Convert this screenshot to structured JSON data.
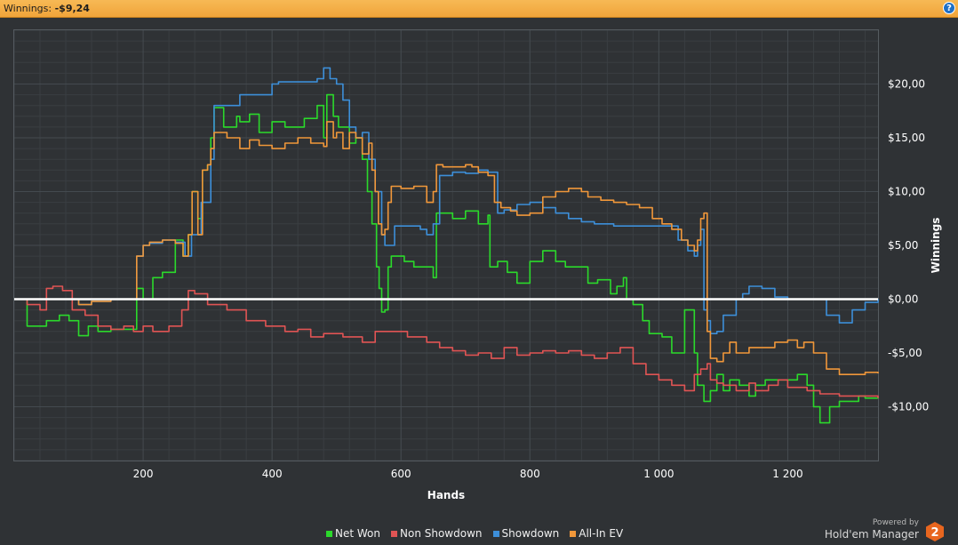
{
  "header": {
    "label": "Winnings:",
    "value": "-$9,24",
    "help_icon": "?"
  },
  "footer": {
    "powered_by": "Powered by",
    "brand": "Hold'em Manager",
    "logo_number": "2"
  },
  "colors": {
    "net_won": "#2bd92b",
    "non_showdown": "#e05454",
    "showdown": "#3d8fd9",
    "all_in_ev": "#f0973a",
    "zero_line": "#ffffff",
    "header_bg": "#f5b24c",
    "chart_bg": "#2f3235",
    "grid": "#444a4f"
  },
  "chart_data": {
    "type": "line",
    "xlabel": "Hands",
    "ylabel": "Winnings",
    "xlim": [
      0,
      1340
    ],
    "ylim": [
      -15,
      25
    ],
    "xticks": [
      200,
      400,
      600,
      800,
      1000,
      1200
    ],
    "xtick_labels": [
      "200",
      "400",
      "600",
      "800",
      "1 000",
      "1 200"
    ],
    "yticks": [
      -10,
      -5,
      0,
      5,
      10,
      15,
      20
    ],
    "ytick_labels": [
      "-$10,00",
      "-$5,00",
      "$0,00",
      "$5,00",
      "$10,00",
      "$15,00",
      "$20,00"
    ],
    "grid": true,
    "legend_position": "bottom",
    "series": [
      {
        "name": "Net Won",
        "color": "#2bd92b",
        "x": [
          0,
          20,
          50,
          70,
          85,
          100,
          115,
          130,
          150,
          185,
          190,
          200,
          215,
          230,
          250,
          262,
          270,
          276,
          285,
          292,
          300,
          305,
          310,
          325,
          345,
          350,
          365,
          380,
          400,
          420,
          450,
          470,
          480,
          485,
          495,
          503,
          520,
          530,
          540,
          548,
          555,
          562,
          566,
          570,
          575,
          580,
          585,
          605,
          620,
          650,
          655,
          680,
          700,
          720,
          735,
          738,
          750,
          765,
          780,
          800,
          820,
          840,
          855,
          870,
          890,
          905,
          925,
          935,
          945,
          950,
          960,
          975,
          985,
          1005,
          1020,
          1040,
          1055,
          1060,
          1070,
          1080,
          1090,
          1100,
          1110,
          1125,
          1140,
          1150,
          1165,
          1185,
          1200,
          1215,
          1230,
          1240,
          1250,
          1265,
          1280,
          1300,
          1310,
          1320,
          1340
        ],
        "y": [
          0,
          -2.5,
          -2,
          -1.5,
          -2,
          -3.4,
          -2.5,
          -3,
          -2.8,
          -2.8,
          1,
          0,
          2,
          2.5,
          5.5,
          4,
          6,
          10,
          7.5,
          12,
          12.5,
          15,
          17.8,
          16,
          17,
          16.5,
          17.2,
          15.5,
          16.5,
          16,
          16.8,
          18,
          15,
          19,
          17,
          16,
          14.5,
          15,
          13,
          10,
          7,
          3,
          1,
          -1.2,
          -1,
          3,
          4,
          3.5,
          3,
          2,
          8,
          7.5,
          8.2,
          7,
          7.8,
          3,
          3.5,
          2.5,
          1.5,
          3.5,
          4.5,
          3.5,
          3,
          3,
          1.5,
          1.8,
          0.5,
          1.2,
          2,
          0,
          -0.5,
          -2,
          -3.2,
          -3.5,
          -5,
          -1,
          -5,
          -8,
          -9.5,
          -8.5,
          -7,
          -8.5,
          -7.5,
          -8,
          -9,
          -8,
          -7.5,
          -7.5,
          -7.5,
          -7,
          -8,
          -10,
          -11.5,
          -10,
          -9.5,
          -9.5,
          -9,
          -9.2,
          -9.24
        ]
      },
      {
        "name": "Non Showdown",
        "color": "#e05454",
        "x": [
          0,
          20,
          40,
          50,
          60,
          75,
          90,
          110,
          130,
          150,
          170,
          185,
          200,
          215,
          240,
          260,
          270,
          280,
          300,
          330,
          360,
          390,
          420,
          440,
          460,
          480,
          510,
          540,
          560,
          590,
          610,
          640,
          660,
          680,
          700,
          720,
          740,
          760,
          780,
          800,
          820,
          840,
          860,
          880,
          900,
          920,
          940,
          960,
          980,
          1000,
          1020,
          1040,
          1055,
          1065,
          1075,
          1080,
          1090,
          1100,
          1120,
          1140,
          1150,
          1170,
          1185,
          1200,
          1230,
          1250,
          1280,
          1310,
          1340
        ],
        "y": [
          0,
          -0.5,
          -1,
          1,
          1.2,
          0.8,
          -1,
          -1.5,
          -2.5,
          -2.8,
          -2.5,
          -3,
          -2.5,
          -3,
          -2.5,
          -1,
          0.8,
          0.5,
          -0.5,
          -1,
          -2,
          -2.5,
          -3,
          -2.8,
          -3.5,
          -3.2,
          -3.5,
          -4,
          -3,
          -3,
          -3.5,
          -4,
          -4.5,
          -4.8,
          -5.2,
          -5,
          -5.5,
          -4.5,
          -5.2,
          -5,
          -4.8,
          -5,
          -4.8,
          -5.2,
          -5.5,
          -5,
          -4.5,
          -6,
          -7,
          -7.5,
          -8,
          -8.5,
          -7,
          -6.5,
          -6,
          -7.5,
          -7.8,
          -8,
          -8.5,
          -7.8,
          -8.5,
          -8,
          -7.5,
          -8.2,
          -8.5,
          -8.8,
          -9,
          -9,
          -9.2
        ]
      },
      {
        "name": "Showdown",
        "color": "#3d8fd9",
        "x": [
          0,
          100,
          120,
          150,
          185,
          190,
          200,
          210,
          230,
          250,
          265,
          275,
          290,
          305,
          310,
          345,
          350,
          400,
          410,
          470,
          480,
          490,
          500,
          510,
          520,
          530,
          540,
          550,
          560,
          570,
          575,
          580,
          590,
          620,
          630,
          640,
          650,
          660,
          680,
          700,
          720,
          735,
          750,
          760,
          780,
          800,
          820,
          840,
          860,
          880,
          900,
          930,
          960,
          1000,
          1030,
          1045,
          1055,
          1060,
          1065,
          1070,
          1075,
          1080,
          1090,
          1100,
          1120,
          1130,
          1140,
          1160,
          1180,
          1200,
          1220,
          1240,
          1260,
          1280,
          1300,
          1320,
          1340
        ],
        "y": [
          0,
          -0.5,
          -0.2,
          0,
          0,
          4,
          5,
          5.2,
          5.5,
          5.3,
          4,
          6,
          9,
          13,
          18,
          18,
          19,
          20,
          20.2,
          20.5,
          21.5,
          20.5,
          20,
          18.5,
          16,
          15,
          15.5,
          13,
          10,
          6,
          5,
          5,
          6.8,
          6.8,
          6.5,
          6,
          7,
          11.5,
          11.8,
          11.7,
          12,
          11.8,
          8,
          8.3,
          8.8,
          9,
          8.5,
          8,
          7.5,
          7.2,
          7,
          6.8,
          6.8,
          6.8,
          5.5,
          4.5,
          4,
          5,
          6.5,
          -1,
          -2,
          -3.2,
          -3,
          -1.5,
          0,
          0.5,
          1.2,
          1,
          0.2,
          0,
          0,
          0,
          -1.5,
          -2.2,
          -1,
          -0.3,
          0
        ]
      },
      {
        "name": "All-In EV",
        "color": "#f0973a",
        "x": [
          0,
          100,
          120,
          150,
          185,
          190,
          200,
          210,
          230,
          250,
          262,
          270,
          276,
          285,
          292,
          300,
          305,
          310,
          330,
          350,
          365,
          380,
          400,
          420,
          440,
          460,
          480,
          485,
          495,
          500,
          510,
          520,
          530,
          540,
          550,
          555,
          560,
          565,
          570,
          575,
          580,
          585,
          600,
          620,
          640,
          650,
          655,
          665,
          680,
          700,
          710,
          720,
          735,
          745,
          755,
          770,
          780,
          800,
          820,
          840,
          860,
          880,
          890,
          910,
          930,
          950,
          970,
          990,
          1005,
          1020,
          1035,
          1045,
          1055,
          1060,
          1065,
          1070,
          1075,
          1080,
          1090,
          1100,
          1110,
          1120,
          1140,
          1160,
          1180,
          1200,
          1215,
          1225,
          1240,
          1260,
          1280,
          1300,
          1320,
          1340
        ],
        "y": [
          0,
          -0.5,
          -0.2,
          0,
          0,
          4,
          5,
          5.3,
          5.5,
          5.2,
          4,
          6,
          10,
          6,
          12,
          12.5,
          14,
          15.5,
          15,
          14,
          14.8,
          14.3,
          14,
          14.5,
          15,
          14.5,
          14.2,
          16.5,
          15,
          15.5,
          14,
          15.5,
          15,
          13.5,
          14.5,
          12,
          10,
          7,
          6,
          6.5,
          9,
          10.5,
          10.3,
          10.5,
          9,
          10,
          12.5,
          12.3,
          12.3,
          12.5,
          12.3,
          11.8,
          11.5,
          9,
          8.5,
          8.2,
          7.8,
          8,
          9.5,
          10,
          10.3,
          10,
          9.5,
          9.2,
          9,
          8.8,
          8.5,
          7.5,
          7,
          6.5,
          5.5,
          5,
          4.5,
          5.5,
          7.5,
          8,
          -3,
          -5.5,
          -5.8,
          -5,
          -4,
          -5,
          -4.5,
          -4.5,
          -4,
          -3.8,
          -4.5,
          -4,
          -5,
          -6.5,
          -7,
          -7,
          -6.8,
          -6.9
        ]
      }
    ]
  }
}
